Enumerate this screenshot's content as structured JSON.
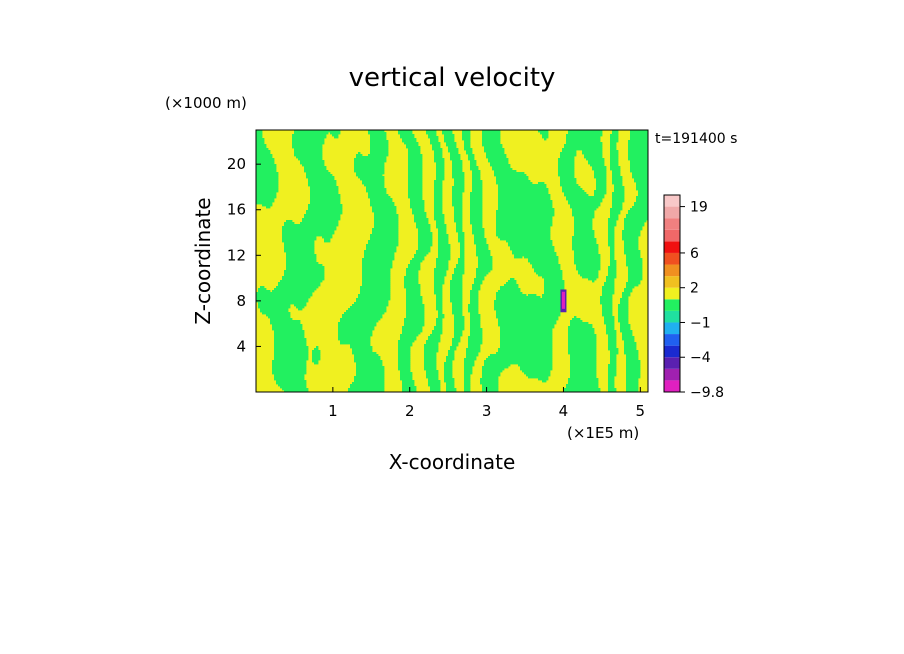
{
  "chart_data": {
    "type": "heatmap",
    "title": "vertical velocity",
    "xlabel": "X-coordinate",
    "ylabel": "Z-coordinate",
    "x_unit": "(×1E5 m)",
    "y_unit": "(×1000 m)",
    "time_label": "t=191400 s",
    "xlim": [
      0,
      5.1
    ],
    "ylim": [
      0,
      23
    ],
    "x_ticks": [
      1,
      2,
      3,
      4,
      5
    ],
    "x_tick_labels": [
      "1",
      "2",
      "3",
      "4",
      "5"
    ],
    "y_ticks": [
      4,
      8,
      12,
      16,
      20
    ],
    "y_tick_labels": [
      "4",
      "8",
      "12",
      "16",
      "20"
    ],
    "colorbar": {
      "min": -9.8,
      "max": 24,
      "levels": [
        -9.8,
        -8,
        -6,
        -4,
        -3,
        -2,
        -1,
        0,
        1,
        2,
        3,
        4,
        6,
        9,
        13,
        16,
        19,
        24
      ],
      "colors": [
        "#e020c0",
        "#a020b0",
        "#5a20b0",
        "#1a2ad0",
        "#2060f0",
        "#20b0f0",
        "#20e0a0",
        "#22f060",
        "#f0f020",
        "#f0c020",
        "#f09020",
        "#f05020",
        "#f01010",
        "#f06868",
        "#f08080",
        "#f0a8a8",
        "#f8c8c8"
      ],
      "tick_values": [
        19,
        6,
        2,
        -1,
        -4,
        -9.8
      ],
      "tick_labels": [
        "19",
        "6",
        "2",
        "−1",
        "−4",
        "−9.8"
      ]
    },
    "field_description_colors": {
      "positive_small": "#f0f020",
      "negative_small": "#22f060"
    }
  }
}
